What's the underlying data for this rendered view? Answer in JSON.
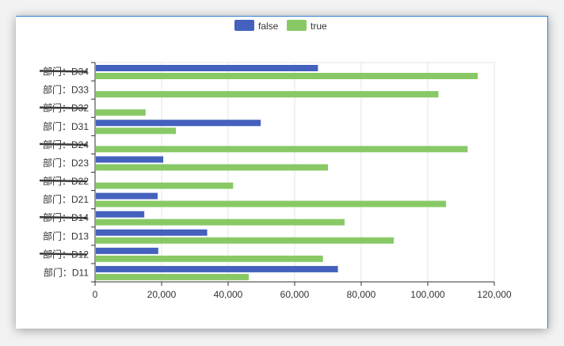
{
  "chart_data": {
    "type": "bar",
    "orientation": "horizontal",
    "categories": [
      "部门：D11",
      "部门：D12",
      "部门：D13",
      "部门：D14",
      "部门：D21",
      "部门：D22",
      "部门：D23",
      "部门：D24",
      "部门：D31",
      "部门：D32",
      "部门：D33",
      "部门：D34"
    ],
    "struck_categories": [
      "部门：D12",
      "部门：D14",
      "部门：D22",
      "部门：D24",
      "部门：D32",
      "部门：D34"
    ],
    "series": [
      {
        "name": "false",
        "color": "#4461be",
        "values": [
          73000,
          19000,
          33700,
          14800,
          18800,
          0,
          20500,
          0,
          49800,
          0,
          0,
          67000
        ]
      },
      {
        "name": "true",
        "color": "#88c966",
        "values": [
          46200,
          68500,
          89800,
          75000,
          105500,
          41500,
          70000,
          112000,
          24300,
          15200,
          103200,
          115000
        ]
      }
    ],
    "xlim": [
      0,
      120000
    ],
    "xticks": [
      0,
      20000,
      40000,
      60000,
      80000,
      100000,
      120000
    ],
    "xtick_labels": [
      "0",
      "20,000",
      "40,000",
      "60,000",
      "80,000",
      "100,000",
      "120,000"
    ],
    "grid": true,
    "legend_position": "top-center",
    "title": "",
    "xlabel": "",
    "ylabel": ""
  }
}
